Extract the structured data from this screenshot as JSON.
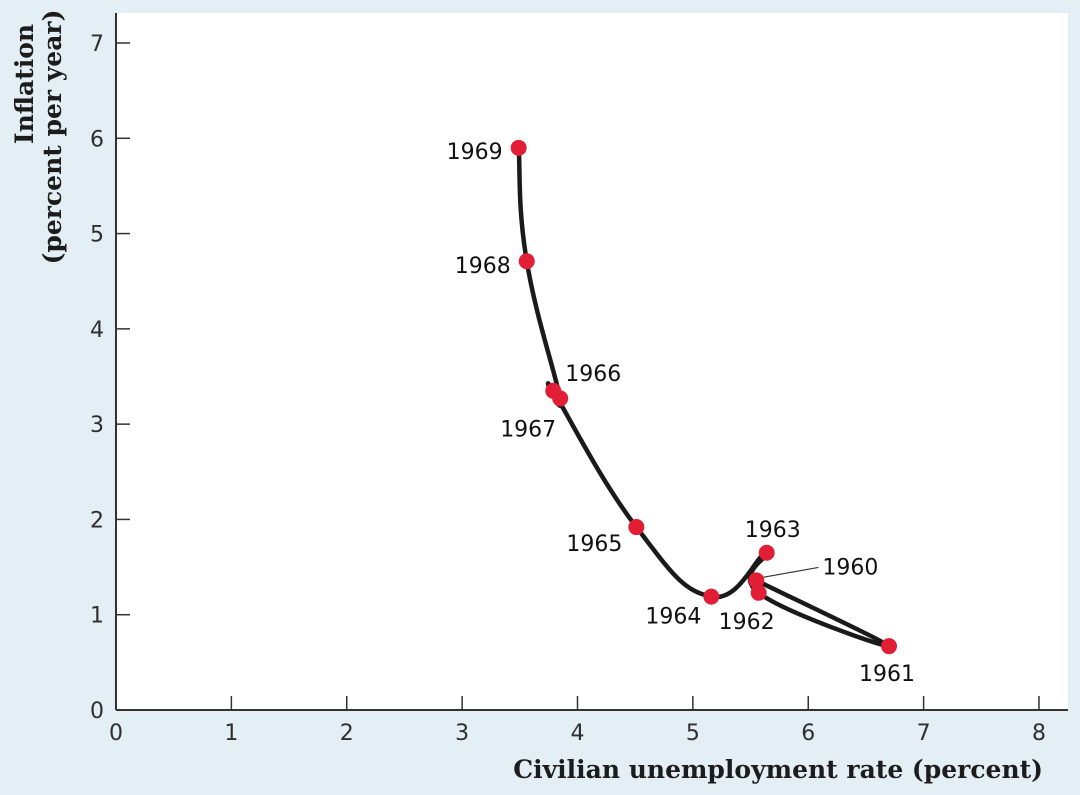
{
  "chart_data": {
    "type": "line",
    "title": "",
    "xlabel": "Civilian unemployment rate (percent)",
    "ylabel_line1": "Inflation",
    "ylabel_line2": "(percent per year)",
    "xlim": [
      0,
      8
    ],
    "ylim": [
      0,
      7
    ],
    "x_ticks": [
      "0",
      "1",
      "2",
      "3",
      "4",
      "5",
      "6",
      "7",
      "8"
    ],
    "y_ticks": [
      "0",
      "1",
      "2",
      "3",
      "4",
      "5",
      "6",
      "7"
    ],
    "grid": false,
    "series": [
      {
        "points": [
          {
            "year": "1960",
            "x": 5.55,
            "y": 1.36
          },
          {
            "year": "1961",
            "x": 6.7,
            "y": 0.67
          },
          {
            "year": "1962",
            "x": 5.57,
            "y": 1.23
          },
          {
            "year": "1963",
            "x": 5.64,
            "y": 1.65
          },
          {
            "year": "1964",
            "x": 5.16,
            "y": 1.19
          },
          {
            "year": "1965",
            "x": 4.51,
            "y": 1.92
          },
          {
            "year": "1966",
            "x": 3.79,
            "y": 3.35
          },
          {
            "year": "1967",
            "x": 3.85,
            "y": 3.27
          },
          {
            "year": "1968",
            "x": 3.56,
            "y": 4.71
          },
          {
            "year": "1969",
            "x": 3.49,
            "y": 5.9
          }
        ]
      }
    ],
    "colors": {
      "background": "#e3eef5",
      "plot_background": "#ffffff",
      "line": "#1a1a1a",
      "marker": "#e21e36",
      "axis": "#333333"
    }
  }
}
